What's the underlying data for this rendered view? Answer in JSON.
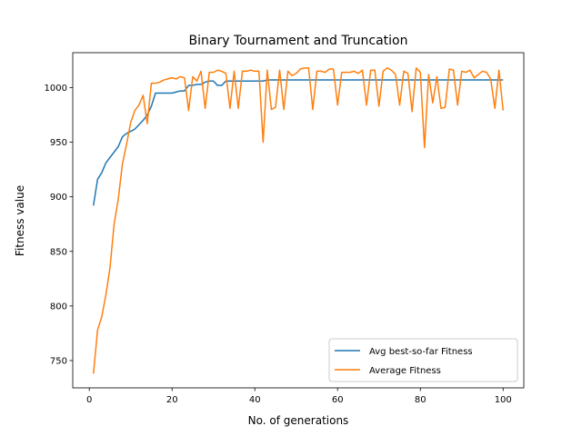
{
  "chart_data": {
    "type": "line",
    "title": "Binary Tournament and Truncation",
    "xlabel": "No. of generations",
    "ylabel": "Fitness value",
    "xlim": [
      -4,
      105
    ],
    "ylim": [
      725,
      1032
    ],
    "xticks": [
      0,
      20,
      40,
      60,
      80,
      100
    ],
    "yticks": [
      750,
      800,
      850,
      900,
      950,
      1000
    ],
    "legend": "lower-right",
    "grid": false,
    "series": [
      {
        "name": "Avg best-so-far Fitness",
        "color": "#1f77b4",
        "values": [
          892,
          916,
          922,
          931,
          936,
          941,
          946,
          955,
          958,
          960,
          962,
          966,
          970,
          975,
          983,
          995,
          995,
          995,
          995,
          995,
          996,
          997,
          997,
          1002,
          1002,
          1003,
          1003,
          1005,
          1006,
          1006,
          1002,
          1002,
          1006,
          1006,
          1006,
          1006,
          1006,
          1006,
          1006,
          1006,
          1006,
          1006,
          1007,
          1007,
          1007,
          1007,
          1007,
          1007,
          1007,
          1007,
          1007,
          1007,
          1007,
          1007,
          1007,
          1007,
          1007,
          1007,
          1007,
          1007,
          1007,
          1007,
          1007,
          1007,
          1007,
          1007,
          1007,
          1007,
          1007,
          1007,
          1007,
          1007,
          1007,
          1007,
          1007,
          1007,
          1007,
          1007,
          1007,
          1007,
          1007,
          1007,
          1007,
          1007,
          1007,
          1007,
          1007,
          1007,
          1007,
          1007,
          1007,
          1007,
          1007,
          1007,
          1007,
          1007,
          1007,
          1007,
          1007,
          1007
        ]
      },
      {
        "name": "Average Fitness",
        "color": "#ff7f0e",
        "values": [
          738,
          778,
          790,
          810,
          835,
          875,
          898,
          930,
          948,
          968,
          979,
          984,
          993,
          967,
          1004,
          1004,
          1005,
          1007,
          1008,
          1009,
          1008,
          1010,
          1009,
          979,
          1010,
          1006,
          1015,
          981,
          1014,
          1014,
          1016,
          1015,
          1013,
          981,
          1015,
          981,
          1015,
          1015,
          1016,
          1015,
          1015,
          950,
          1016,
          980,
          982,
          1016,
          980,
          1015,
          1011,
          1013,
          1017,
          1018,
          1018,
          980,
          1015,
          1015,
          1014,
          1017,
          1017,
          984,
          1014,
          1014,
          1014,
          1015,
          1013,
          1016,
          984,
          1016,
          1016,
          983,
          1015,
          1018,
          1016,
          1012,
          984,
          1015,
          1013,
          978,
          1018,
          1014,
          945,
          1012,
          986,
          1010,
          981,
          982,
          1017,
          1016,
          984,
          1015,
          1014,
          1016,
          1009,
          1012,
          1015,
          1014,
          1008,
          981,
          1016,
          979
        ]
      }
    ]
  }
}
